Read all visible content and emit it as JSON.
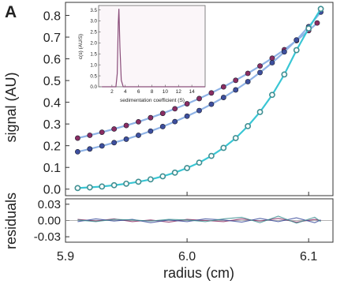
{
  "panel_label": "A",
  "colors": {
    "purple": "#8a2d63",
    "blue": "#3d4f9e",
    "teal": "#3f8f92",
    "line_light_blue": "#8fb3e6",
    "line_cyan": "#39c6d4",
    "inset_line": "#8a4d7a"
  },
  "chart_data": [
    {
      "name": "main-plot",
      "type": "scatter",
      "xlabel": "radius (cm)",
      "ylabel": "signal (AU)",
      "xlim": [
        5.9,
        6.12
      ],
      "ylim": [
        -0.03,
        0.86
      ],
      "x_ticks": [
        5.9,
        6.0,
        6.1
      ],
      "x_tick_labels": [
        "5.9",
        "6.0",
        "6.1"
      ],
      "y_ticks": [
        0.0,
        0.1,
        0.2,
        0.3,
        0.4,
        0.5,
        0.6,
        0.7,
        0.8
      ],
      "y_tick_labels": [
        "0.0",
        "0.1",
        "0.2",
        "0.3",
        "0.4",
        "0.5",
        "0.6",
        "0.7",
        "0.8"
      ],
      "grid": false,
      "series": [
        {
          "color_key": "purple",
          "line_color_key": "line_light_blue",
          "x": [
            5.91,
            5.92,
            5.93,
            5.94,
            5.95,
            5.96,
            5.97,
            5.98,
            5.99,
            6.0,
            6.01,
            6.02,
            6.03,
            6.04,
            6.05,
            6.06,
            6.07,
            6.08,
            6.09,
            6.1,
            6.107
          ],
          "y": [
            0.235,
            0.248,
            0.262,
            0.277,
            0.293,
            0.31,
            0.329,
            0.349,
            0.37,
            0.393,
            0.417,
            0.443,
            0.471,
            0.501,
            0.533,
            0.567,
            0.603,
            0.642,
            0.684,
            0.73,
            0.765
          ]
        },
        {
          "color_key": "blue",
          "line_color_key": "line_light_blue",
          "x": [
            5.91,
            5.92,
            5.93,
            5.94,
            5.95,
            5.96,
            5.97,
            5.98,
            5.99,
            6.0,
            6.01,
            6.02,
            6.03,
            6.04,
            6.05,
            6.06,
            6.07,
            6.08,
            6.09,
            6.1,
            6.11
          ],
          "y": [
            0.172,
            0.185,
            0.199,
            0.214,
            0.23,
            0.248,
            0.267,
            0.288,
            0.311,
            0.336,
            0.362,
            0.391,
            0.422,
            0.457,
            0.495,
            0.537,
            0.582,
            0.632,
            0.687,
            0.748,
            0.815
          ]
        },
        {
          "color_key": "teal",
          "line_color_key": "line_cyan",
          "x": [
            5.91,
            5.92,
            5.93,
            5.94,
            5.95,
            5.96,
            5.97,
            5.98,
            5.99,
            6.0,
            6.01,
            6.02,
            6.03,
            6.04,
            6.05,
            6.06,
            6.07,
            6.08,
            6.09,
            6.1,
            6.11
          ],
          "y": [
            0.005,
            0.008,
            0.012,
            0.018,
            0.025,
            0.034,
            0.045,
            0.059,
            0.076,
            0.097,
            0.122,
            0.153,
            0.19,
            0.235,
            0.29,
            0.355,
            0.434,
            0.528,
            0.64,
            0.74,
            0.83
          ]
        }
      ]
    },
    {
      "name": "residuals",
      "type": "line",
      "ylabel": "residuals",
      "xlim": [
        5.9,
        6.12
      ],
      "ylim": [
        -0.04,
        0.04
      ],
      "y_ticks": [
        0.03,
        0.0,
        -0.03
      ],
      "y_tick_labels": [
        "0.03",
        "0.00",
        "-0.03"
      ],
      "grid": false,
      "series": [
        {
          "color_key": "purple",
          "x": [
            5.91,
            5.925,
            5.94,
            5.955,
            5.97,
            5.985,
            6.0,
            6.015,
            6.03,
            6.045,
            6.06,
            6.075,
            6.09,
            6.105,
            6.11
          ],
          "y": [
            0.002,
            -0.001,
            0.003,
            -0.002,
            0.001,
            -0.003,
            0.002,
            0.0,
            -0.002,
            0.003,
            -0.001,
            0.004,
            -0.003,
            0.002,
            0.0
          ]
        },
        {
          "color_key": "blue",
          "x": [
            5.91,
            5.925,
            5.94,
            5.955,
            5.97,
            5.985,
            6.0,
            6.015,
            6.03,
            6.045,
            6.06,
            6.075,
            6.09,
            6.105,
            6.11
          ],
          "y": [
            -0.002,
            0.003,
            -0.001,
            0.002,
            -0.004,
            0.001,
            -0.002,
            0.003,
            0.001,
            -0.003,
            0.004,
            -0.002,
            0.005,
            -0.004,
            0.001
          ]
        },
        {
          "color_key": "teal",
          "x": [
            5.91,
            5.925,
            5.94,
            5.955,
            5.97,
            5.985,
            6.0,
            6.015,
            6.03,
            6.045,
            6.06,
            6.075,
            6.09,
            6.105,
            6.11
          ],
          "y": [
            0.001,
            -0.002,
            0.002,
            0.001,
            -0.001,
            0.002,
            0.001,
            -0.002,
            0.003,
            0.006,
            -0.004,
            0.008,
            -0.005,
            0.006,
            -0.002
          ]
        }
      ]
    },
    {
      "name": "inset",
      "type": "line",
      "xlabel": "sedimentation coefficient (S)",
      "ylabel": "c(s) (AU/S)",
      "xlim": [
        0,
        16
      ],
      "ylim": [
        0,
        3.7
      ],
      "x_ticks": [
        2,
        4,
        6,
        8,
        10,
        12,
        14
      ],
      "x_tick_labels": [
        "2",
        "4",
        "6",
        "8",
        "10",
        "12",
        "14"
      ],
      "y_ticks": [
        0.0,
        0.5,
        1.0,
        1.5,
        2.0,
        2.5,
        3.0,
        3.5
      ],
      "y_tick_labels": [
        "0.0",
        "0.5",
        "1.0",
        "1.5",
        "2.0",
        "2.5",
        "3.0",
        "3.5"
      ],
      "grid": false,
      "series": [
        {
          "color_key": "inset_line",
          "x": [
            0.5,
            2.3,
            2.6,
            2.8,
            2.95,
            3.05,
            3.2,
            3.4,
            3.7,
            16
          ],
          "y": [
            0,
            0,
            0,
            0.6,
            2.9,
            3.55,
            1.8,
            0.3,
            0,
            0
          ]
        }
      ]
    }
  ]
}
